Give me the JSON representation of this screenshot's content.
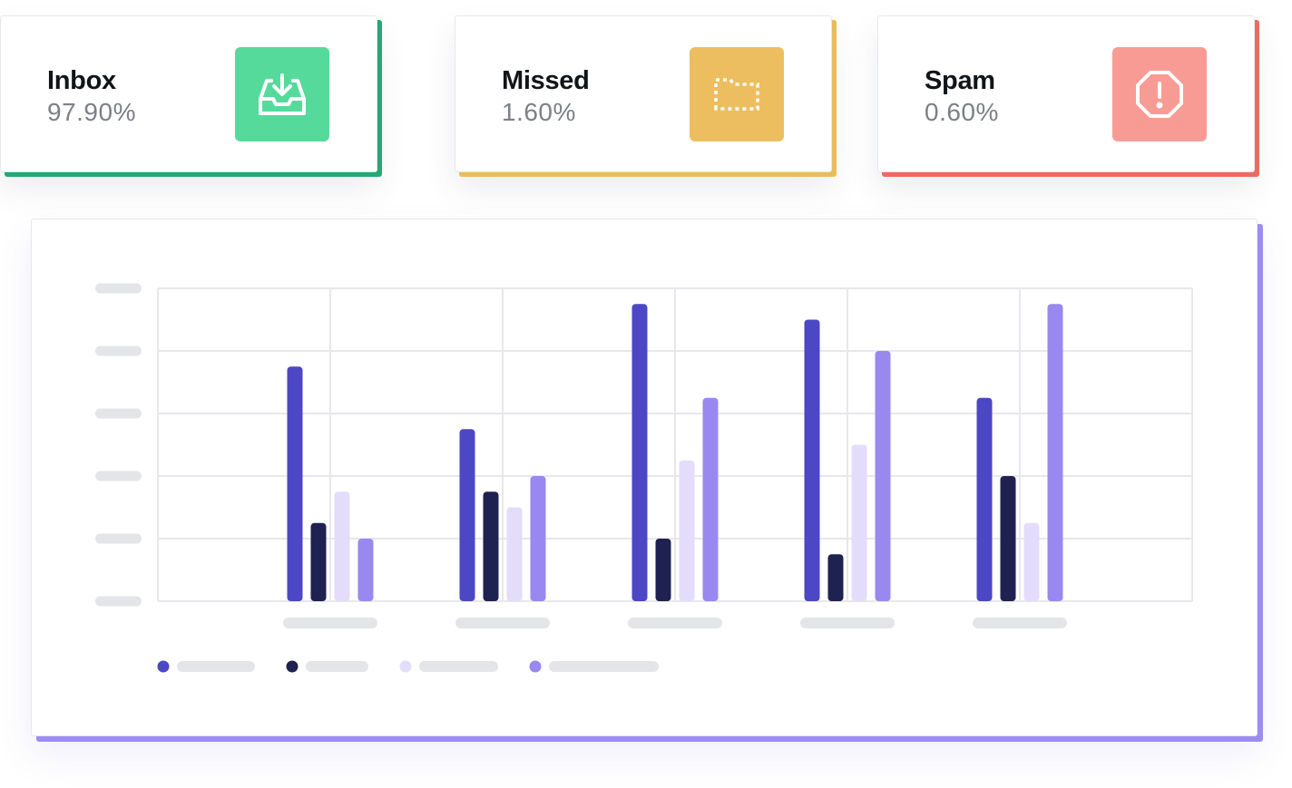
{
  "cards": [
    {
      "title": "Inbox",
      "value": "97.90%",
      "icon": "inbox-download-icon",
      "icon_bg": "#56da9c",
      "accent": "#24a874"
    },
    {
      "title": "Missed",
      "value": "1.60%",
      "icon": "dotted-folder-icon",
      "icon_bg": "#ecbe5f",
      "accent": "#e9bc5c"
    },
    {
      "title": "Spam",
      "value": "0.60%",
      "icon": "alert-octagon-icon",
      "icon_bg": "#f89b94",
      "accent": "#ee6a60"
    }
  ],
  "chart_data": {
    "type": "bar",
    "categories": [
      "",
      "",
      "",
      "",
      ""
    ],
    "ylim": [
      0,
      5
    ],
    "grid": true,
    "legend_position": "bottom-left",
    "series": [
      {
        "color": "#4c47c4",
        "values": [
          3.75,
          2.75,
          4.75,
          4.5,
          3.25
        ]
      },
      {
        "color": "#1f2150",
        "values": [
          1.25,
          1.75,
          1.0,
          0.75,
          2.0
        ]
      },
      {
        "color": "#e4dcfb",
        "values": [
          1.75,
          1.5,
          2.25,
          2.5,
          1.25
        ]
      },
      {
        "color": "#9888f0",
        "values": [
          1.0,
          2.0,
          3.25,
          4.0,
          4.75
        ]
      }
    ]
  }
}
